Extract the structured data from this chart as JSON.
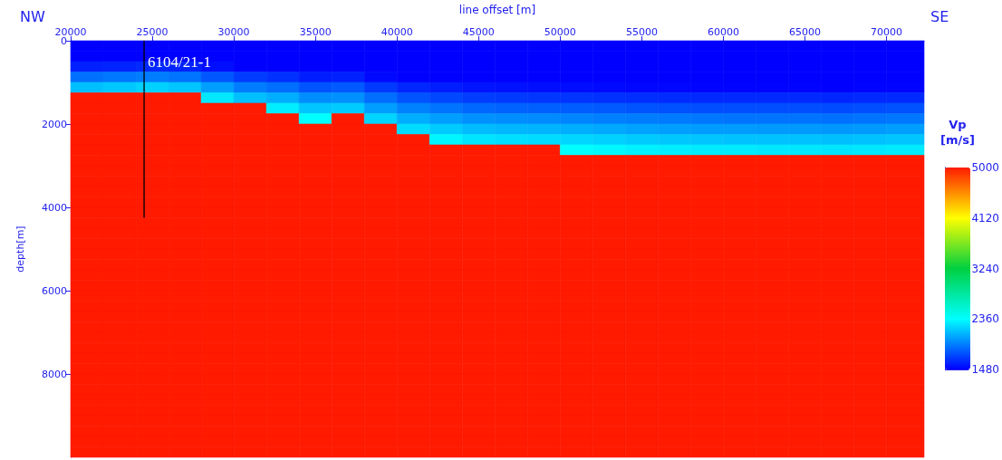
{
  "chart_data": {
    "type": "heatmap",
    "xlabel": "line offset [m]",
    "ylabel": "depth[m]",
    "clabel": "Vp [m/s]",
    "annotations": [
      "NW",
      "SE",
      {
        "text": "6104/21-1",
        "x": 24500,
        "y": 500
      }
    ],
    "xlim": [
      20000,
      72300
    ],
    "xticks": [
      20000,
      25000,
      30000,
      35000,
      40000,
      45000,
      50000,
      55000,
      60000,
      65000,
      70000
    ],
    "ylim": [
      10000,
      0
    ],
    "yticks": [
      0,
      2000,
      4000,
      6000,
      8000
    ],
    "clim": [
      1480,
      5000
    ],
    "cticks": [
      1480,
      2360,
      3240,
      4120,
      5000
    ],
    "x": [
      21000,
      23000,
      25000,
      27000,
      29000,
      31000,
      33000,
      35000,
      37000,
      39000,
      41000,
      43000,
      45000,
      47000,
      49000,
      51000,
      53000,
      55000,
      57000,
      59000,
      61000,
      63000,
      65000,
      67000,
      69000,
      71000
    ],
    "y": [
      125,
      375,
      625,
      875,
      1125,
      1375,
      1625,
      1875,
      2125,
      2375,
      2625,
      2875,
      3125,
      3375,
      3625,
      3875,
      4125,
      4375,
      4625,
      4875,
      5125,
      5375,
      5625,
      5875,
      6125,
      6375,
      6625,
      6875,
      7125,
      7375,
      7625,
      7875,
      8125,
      8375,
      8625,
      8875,
      9125,
      9375,
      9625,
      9875
    ],
    "cells": [
      [
        1480,
        1480,
        1480,
        1480,
        1480,
        1480,
        1480,
        1480,
        1480,
        1480,
        1480,
        1480,
        1480,
        1480,
        1480,
        1480,
        1480,
        1480,
        1480,
        1480,
        1480,
        1480,
        1480,
        1480,
        1480,
        1480
      ],
      [
        1480,
        1480,
        1480,
        1480,
        1480,
        1480,
        1480,
        1480,
        1480,
        1480,
        1480,
        1480,
        1480,
        1480,
        1480,
        1480,
        1480,
        1480,
        1480,
        1480,
        1480,
        1480,
        1480,
        1480,
        1480,
        1480
      ],
      [
        1590,
        1600,
        1620,
        1600,
        1530,
        1480,
        1480,
        1480,
        1480,
        1480,
        1480,
        1480,
        1480,
        1480,
        1480,
        1480,
        1480,
        1480,
        1480,
        1480,
        1480,
        1480,
        1480,
        1480,
        1480,
        1480
      ],
      [
        1870,
        1890,
        1910,
        1880,
        1780,
        1690,
        1650,
        1580,
        1590,
        1510,
        1480,
        1480,
        1480,
        1480,
        1480,
        1480,
        1480,
        1480,
        1480,
        1480,
        1480,
        1480,
        1480,
        1480,
        1480,
        1480
      ],
      [
        2140,
        2170,
        2200,
        2160,
        2030,
        1910,
        1860,
        1770,
        1790,
        1680,
        1610,
        1580,
        1550,
        1540,
        1530,
        1520,
        1510,
        1500,
        1500,
        1490,
        1490,
        1490,
        1490,
        1480,
        1490,
        1490
      ],
      [
        5000,
        5000,
        5000,
        5000,
        2280,
        2140,
        2080,
        1970,
        1980,
        1860,
        1770,
        1730,
        1690,
        1680,
        1670,
        1660,
        1650,
        1640,
        1630,
        1620,
        1620,
        1620,
        1620,
        1610,
        1620,
        1620
      ],
      [
        5000,
        5000,
        5000,
        5000,
        5000,
        5000,
        2300,
        2160,
        2180,
        2030,
        1930,
        1880,
        1840,
        1820,
        1810,
        1800,
        1790,
        1770,
        1760,
        1750,
        1750,
        1750,
        1750,
        1740,
        1750,
        1760
      ],
      [
        5000,
        5000,
        5000,
        5000,
        5000,
        5000,
        5000,
        2360,
        5000,
        2210,
        2080,
        2030,
        1980,
        1970,
        1960,
        1940,
        1920,
        1910,
        1900,
        1890,
        1880,
        1880,
        1880,
        1870,
        1880,
        1890
      ],
      [
        5000,
        5000,
        5000,
        5000,
        5000,
        5000,
        5000,
        5000,
        5000,
        5000,
        2240,
        2180,
        2130,
        2110,
        2100,
        2080,
        2060,
        2040,
        2030,
        2020,
        2020,
        2010,
        2010,
        2000,
        2010,
        2030
      ],
      [
        5000,
        5000,
        5000,
        5000,
        5000,
        5000,
        5000,
        5000,
        5000,
        5000,
        5000,
        2330,
        2270,
        2250,
        2240,
        2220,
        2200,
        2180,
        2170,
        2160,
        2150,
        2150,
        2150,
        2140,
        2150,
        2160
      ],
      [
        5000,
        5000,
        5000,
        5000,
        5000,
        5000,
        5000,
        5000,
        5000,
        5000,
        5000,
        5000,
        5000,
        5000,
        5000,
        2360,
        2340,
        2310,
        2300,
        2290,
        2290,
        2280,
        2280,
        2270,
        2280,
        2290
      ],
      [
        5000,
        5000,
        5000,
        5000,
        5000,
        5000,
        5000,
        5000,
        5000,
        5000,
        5000,
        5000,
        5000,
        5000,
        5000,
        5000,
        5000,
        5000,
        5000,
        5000,
        5000,
        5000,
        5000,
        5000,
        5000,
        5000
      ],
      [
        5000,
        5000,
        5000,
        5000,
        5000,
        5000,
        5000,
        5000,
        5000,
        5000,
        5000,
        5000,
        5000,
        5000,
        5000,
        5000,
        5000,
        5000,
        5000,
        5000,
        5000,
        5000,
        5000,
        5000,
        5000,
        5000
      ],
      [
        5000,
        5000,
        5000,
        5000,
        5000,
        5000,
        5000,
        5000,
        5000,
        5000,
        5000,
        5000,
        5000,
        5000,
        5000,
        5000,
        5000,
        5000,
        5000,
        5000,
        5000,
        5000,
        5000,
        5000,
        5000,
        5000
      ],
      [
        5000,
        5000,
        5000,
        5000,
        5000,
        5000,
        5000,
        5000,
        5000,
        5000,
        5000,
        5000,
        5000,
        5000,
        5000,
        5000,
        5000,
        5000,
        5000,
        5000,
        5000,
        5000,
        5000,
        5000,
        5000,
        5000
      ],
      [
        5000,
        5000,
        5000,
        5000,
        5000,
        5000,
        5000,
        5000,
        5000,
        5000,
        5000,
        5000,
        5000,
        5000,
        5000,
        5000,
        5000,
        5000,
        5000,
        5000,
        5000,
        5000,
        5000,
        5000,
        5000,
        5000
      ],
      [
        5000,
        5000,
        5000,
        5000,
        5000,
        5000,
        5000,
        5000,
        5000,
        5000,
        5000,
        5000,
        5000,
        5000,
        5000,
        5000,
        5000,
        5000,
        5000,
        5000,
        5000,
        5000,
        5000,
        5000,
        5000,
        5000
      ],
      [
        5000,
        5000,
        5000,
        5000,
        5000,
        5000,
        5000,
        5000,
        5000,
        5000,
        5000,
        5000,
        5000,
        5000,
        5000,
        5000,
        5000,
        5000,
        5000,
        5000,
        5000,
        5000,
        5000,
        5000,
        5000,
        5000
      ],
      [
        5000,
        5000,
        5000,
        5000,
        5000,
        5000,
        5000,
        5000,
        5000,
        5000,
        5000,
        5000,
        5000,
        5000,
        5000,
        5000,
        5000,
        5000,
        5000,
        5000,
        5000,
        5000,
        5000,
        5000,
        5000,
        5000
      ],
      [
        5000,
        5000,
        5000,
        5000,
        5000,
        5000,
        5000,
        5000,
        5000,
        5000,
        5000,
        5000,
        5000,
        5000,
        5000,
        5000,
        5000,
        5000,
        5000,
        5000,
        5000,
        5000,
        5000,
        5000,
        5000,
        5000
      ],
      [
        5000,
        5000,
        5000,
        5000,
        5000,
        5000,
        5000,
        5000,
        5000,
        5000,
        5000,
        5000,
        5000,
        5000,
        5000,
        5000,
        5000,
        5000,
        5000,
        5000,
        5000,
        5000,
        5000,
        5000,
        5000,
        5000
      ],
      [
        5000,
        5000,
        5000,
        5000,
        5000,
        5000,
        5000,
        5000,
        5000,
        5000,
        5000,
        5000,
        5000,
        5000,
        5000,
        5000,
        5000,
        5000,
        5000,
        5000,
        5000,
        5000,
        5000,
        5000,
        5000,
        5000
      ],
      [
        5000,
        5000,
        5000,
        5000,
        5000,
        5000,
        5000,
        5000,
        5000,
        5000,
        5000,
        5000,
        5000,
        5000,
        5000,
        5000,
        5000,
        5000,
        5000,
        5000,
        5000,
        5000,
        5000,
        5000,
        5000,
        5000
      ],
      [
        5000,
        5000,
        5000,
        5000,
        5000,
        5000,
        5000,
        5000,
        5000,
        5000,
        5000,
        5000,
        5000,
        5000,
        5000,
        5000,
        5000,
        5000,
        5000,
        5000,
        5000,
        5000,
        5000,
        5000,
        5000,
        5000
      ],
      [
        5000,
        5000,
        5000,
        5000,
        5000,
        5000,
        5000,
        5000,
        5000,
        5000,
        5000,
        5000,
        5000,
        5000,
        5000,
        5000,
        5000,
        5000,
        5000,
        5000,
        5000,
        5000,
        5000,
        5000,
        5000,
        5000
      ],
      [
        5000,
        5000,
        5000,
        5000,
        5000,
        5000,
        5000,
        5000,
        5000,
        5000,
        5000,
        5000,
        5000,
        5000,
        5000,
        5000,
        5000,
        5000,
        5000,
        5000,
        5000,
        5000,
        5000,
        5000,
        5000,
        5000
      ],
      [
        5000,
        5000,
        5000,
        5000,
        5000,
        5000,
        5000,
        5000,
        5000,
        5000,
        5000,
        5000,
        5000,
        5000,
        5000,
        5000,
        5000,
        5000,
        5000,
        5000,
        5000,
        5000,
        5000,
        5000,
        5000,
        5000
      ],
      [
        5000,
        5000,
        5000,
        5000,
        5000,
        5000,
        5000,
        5000,
        5000,
        5000,
        5000,
        5000,
        5000,
        5000,
        5000,
        5000,
        5000,
        5000,
        5000,
        5000,
        5000,
        5000,
        5000,
        5000,
        5000,
        5000
      ],
      [
        5000,
        5000,
        5000,
        5000,
        5000,
        5000,
        5000,
        5000,
        5000,
        5000,
        5000,
        5000,
        5000,
        5000,
        5000,
        5000,
        5000,
        5000,
        5000,
        5000,
        5000,
        5000,
        5000,
        5000,
        5000,
        5000
      ],
      [
        5000,
        5000,
        5000,
        5000,
        5000,
        5000,
        5000,
        5000,
        5000,
        5000,
        5000,
        5000,
        5000,
        5000,
        5000,
        5000,
        5000,
        5000,
        5000,
        5000,
        5000,
        5000,
        5000,
        5000,
        5000,
        5000
      ],
      [
        5000,
        5000,
        5000,
        5000,
        5000,
        5000,
        5000,
        5000,
        5000,
        5000,
        5000,
        5000,
        5000,
        5000,
        5000,
        5000,
        5000,
        5000,
        5000,
        5000,
        5000,
        5000,
        5000,
        5000,
        5000,
        5000
      ],
      [
        5000,
        5000,
        5000,
        5000,
        5000,
        5000,
        5000,
        5000,
        5000,
        5000,
        5000,
        5000,
        5000,
        5000,
        5000,
        5000,
        5000,
        5000,
        5000,
        5000,
        5000,
        5000,
        5000,
        5000,
        5000,
        5000
      ],
      [
        5000,
        5000,
        5000,
        5000,
        5000,
        5000,
        5000,
        5000,
        5000,
        5000,
        5000,
        5000,
        5000,
        5000,
        5000,
        5000,
        5000,
        5000,
        5000,
        5000,
        5000,
        5000,
        5000,
        5000,
        5000,
        5000
      ],
      [
        5000,
        5000,
        5000,
        5000,
        5000,
        5000,
        5000,
        5000,
        5000,
        5000,
        5000,
        5000,
        5000,
        5000,
        5000,
        5000,
        5000,
        5000,
        5000,
        5000,
        5000,
        5000,
        5000,
        5000,
        5000,
        5000
      ],
      [
        5000,
        5000,
        5000,
        5000,
        5000,
        5000,
        5000,
        5000,
        5000,
        5000,
        5000,
        5000,
        5000,
        5000,
        5000,
        5000,
        5000,
        5000,
        5000,
        5000,
        5000,
        5000,
        5000,
        5000,
        5000,
        5000
      ],
      [
        5000,
        5000,
        5000,
        5000,
        5000,
        5000,
        5000,
        5000,
        5000,
        5000,
        5000,
        5000,
        5000,
        5000,
        5000,
        5000,
        5000,
        5000,
        5000,
        5000,
        5000,
        5000,
        5000,
        5000,
        5000,
        5000
      ],
      [
        5000,
        5000,
        5000,
        5000,
        5000,
        5000,
        5000,
        5000,
        5000,
        5000,
        5000,
        5000,
        5000,
        5000,
        5000,
        5000,
        5000,
        5000,
        5000,
        5000,
        5000,
        5000,
        5000,
        5000,
        5000,
        5000
      ],
      [
        5000,
        5000,
        5000,
        5000,
        5000,
        5000,
        5000,
        5000,
        5000,
        5000,
        5000,
        5000,
        5000,
        5000,
        5000,
        5000,
        5000,
        5000,
        5000,
        5000,
        5000,
        5000,
        5000,
        5000,
        5000,
        5000
      ],
      [
        5000,
        5000,
        5000,
        5000,
        5000,
        5000,
        5000,
        5000,
        5000,
        5000,
        5000,
        5000,
        5000,
        5000,
        5000,
        5000,
        5000,
        5000,
        5000,
        5000,
        5000,
        5000,
        5000,
        5000,
        5000,
        5000
      ],
      [
        5000,
        5000,
        5000,
        5000,
        5000,
        5000,
        5000,
        5000,
        5000,
        5000,
        5000,
        5000,
        5000,
        5000,
        5000,
        5000,
        5000,
        5000,
        5000,
        5000,
        5000,
        5000,
        5000,
        5000,
        5000,
        5000
      ]
    ],
    "series": [
      {
        "type": "line",
        "color": "#000000",
        "x": [
          24500,
          24500
        ],
        "values": [
          0,
          4250
        ]
      }
    ]
  }
}
